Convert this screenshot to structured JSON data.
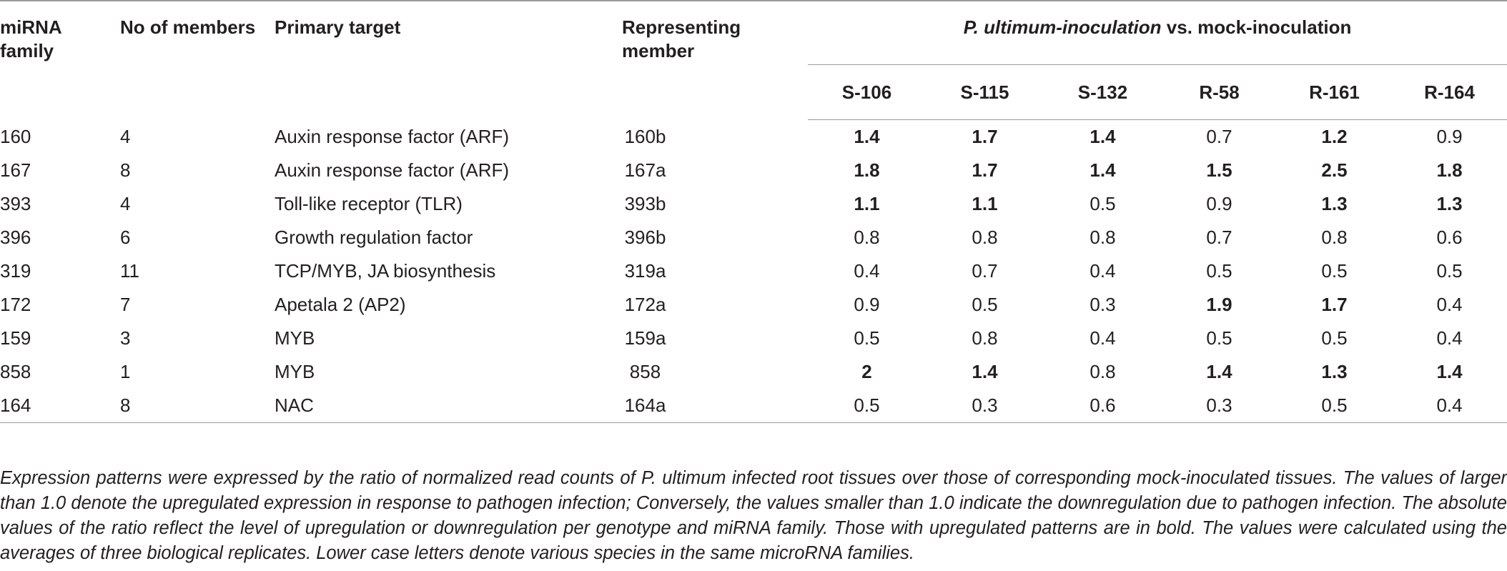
{
  "headers": {
    "family": "miRNA family",
    "members": "No of members",
    "target": "Primary target",
    "representing": "Representing member",
    "group_italic": "P. ultimum-inoculation",
    "group_rest": " vs. mock-inoculation",
    "genotypes": [
      "S-106",
      "S-115",
      "S-132",
      "R-58",
      "R-161",
      "R-164"
    ]
  },
  "rows": [
    {
      "family": "160",
      "members": "4",
      "target": "Auxin response factor (ARF)",
      "rep": "160b",
      "values": [
        "1.4",
        "1.7",
        "1.4",
        "0.7",
        "1.2",
        "0.9"
      ],
      "bold": [
        true,
        true,
        true,
        false,
        true,
        false
      ]
    },
    {
      "family": "167",
      "members": "8",
      "target": "Auxin response factor (ARF)",
      "rep": "167a",
      "values": [
        "1.8",
        "1.7",
        "1.4",
        "1.5",
        "2.5",
        "1.8"
      ],
      "bold": [
        true,
        true,
        true,
        true,
        true,
        true
      ]
    },
    {
      "family": "393",
      "members": "4",
      "target": "Toll-like receptor (TLR)",
      "rep": "393b",
      "values": [
        "1.1",
        "1.1",
        "0.5",
        "0.9",
        "1.3",
        "1.3"
      ],
      "bold": [
        true,
        true,
        false,
        false,
        true,
        true
      ]
    },
    {
      "family": "396",
      "members": "6",
      "target": "Growth regulation factor",
      "rep": "396b",
      "values": [
        "0.8",
        "0.8",
        "0.8",
        "0.7",
        "0.8",
        "0.6"
      ],
      "bold": [
        false,
        false,
        false,
        false,
        false,
        false
      ]
    },
    {
      "family": "319",
      "members": "11",
      "target": "TCP/MYB, JA biosynthesis",
      "rep": "319a",
      "values": [
        "0.4",
        "0.7",
        "0.4",
        "0.5",
        "0.5",
        "0.5"
      ],
      "bold": [
        false,
        false,
        false,
        false,
        false,
        false
      ]
    },
    {
      "family": "172",
      "members": "7",
      "target": "Apetala 2 (AP2)",
      "rep": "172a",
      "values": [
        "0.9",
        "0.5",
        "0.3",
        "1.9",
        "1.7",
        "0.4"
      ],
      "bold": [
        false,
        false,
        false,
        true,
        true,
        false
      ]
    },
    {
      "family": "159",
      "members": "3",
      "target": "MYB",
      "rep": "159a",
      "values": [
        "0.5",
        "0.8",
        "0.4",
        "0.5",
        "0.5",
        "0.4"
      ],
      "bold": [
        false,
        false,
        false,
        false,
        false,
        false
      ]
    },
    {
      "family": "858",
      "members": "1",
      "target": "MYB",
      "rep": "858",
      "values": [
        "2",
        "1.4",
        "0.8",
        "1.4",
        "1.3",
        "1.4"
      ],
      "bold": [
        true,
        true,
        false,
        true,
        true,
        true
      ]
    },
    {
      "family": "164",
      "members": "8",
      "target": "NAC",
      "rep": "164a",
      "values": [
        "0.5",
        "0.3",
        "0.6",
        "0.3",
        "0.5",
        "0.4"
      ],
      "bold": [
        false,
        false,
        false,
        false,
        false,
        false
      ]
    }
  ],
  "footnote": "Expression patterns were expressed by the ratio of normalized read counts of P. ultimum infected root tissues over those of corresponding mock-inoculated tissues. The values of larger than 1.0 denote the upregulated expression in response to pathogen infection; Conversely, the values smaller than 1.0 indicate the downregulation due to pathogen infection. The absolute values of the ratio reflect the level of upregulation or downregulation per genotype and miRNA family. Those with upregulated patterns are in bold. The values were calculated using the averages of three biological replicates. Lower case letters denote various species in the same microRNA families."
}
